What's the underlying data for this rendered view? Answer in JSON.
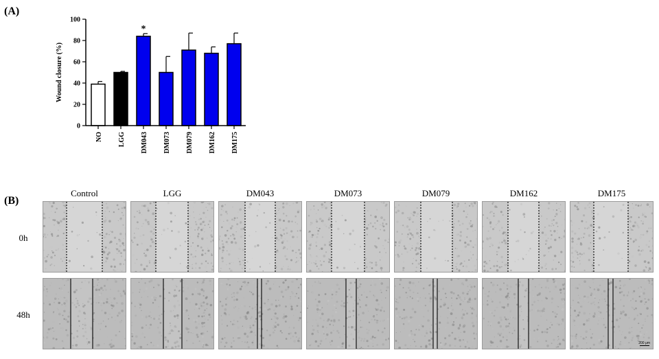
{
  "panel_a_label": "(A)",
  "panel_b_label": "(B)",
  "chart_data": {
    "type": "bar",
    "ylabel": "Wound closure (%)",
    "xlabel": "",
    "ylim": [
      0,
      100
    ],
    "yticks": [
      0,
      20,
      40,
      60,
      80,
      100
    ],
    "categories": [
      "NO",
      "LGG",
      "DM043",
      "DM073",
      "DM079",
      "DM162",
      "DM175"
    ],
    "values": [
      39,
      50,
      84,
      50,
      71,
      68,
      77
    ],
    "errors": [
      2.5,
      1,
      2.5,
      15,
      16,
      6,
      10
    ],
    "colors": [
      "#ffffff",
      "#000000",
      "#0000ee",
      "#0000ee",
      "#0000ee",
      "#0000ee",
      "#0000ee"
    ],
    "annotations": [
      {
        "category": "DM043",
        "text": "*"
      }
    ],
    "grid": false,
    "legend": "none"
  },
  "panel_b": {
    "columns": [
      "Control",
      "LGG",
      "DM043",
      "DM073",
      "DM079",
      "DM162",
      "DM175"
    ],
    "rows": [
      "0h",
      "48h"
    ],
    "scale_bar": "200 μm"
  }
}
